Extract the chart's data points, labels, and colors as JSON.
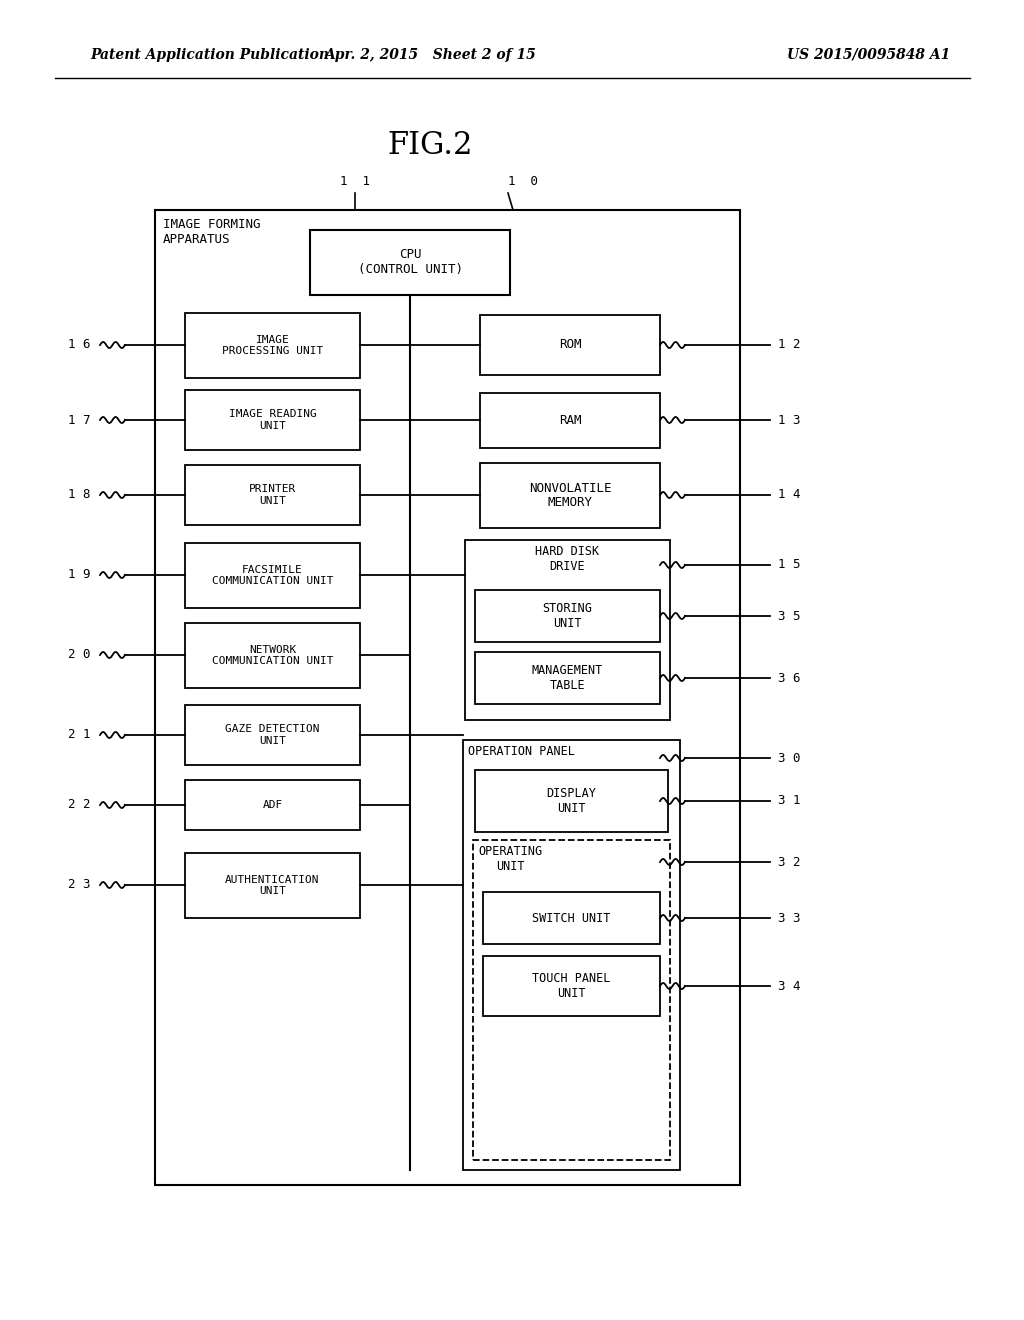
{
  "header_left": "Patent Application Publication",
  "header_mid": "Apr. 2, 2015   Sheet 2 of 15",
  "header_right": "US 2015/0095848 A1",
  "fig_title": "FIG.2",
  "bg_color": "#ffffff",
  "label_10": "1 0",
  "label_11": "1 1",
  "label_cpu": "CPU\n(CONTROL UNIT)",
  "label_outer": "IMAGE FORMING\nAPPARATUS",
  "left_boxes": [
    {
      "label": "IMAGE\nPROCESSING UNIT",
      "ref": "1 6"
    },
    {
      "label": "IMAGE READING\nUNIT",
      "ref": "1 7"
    },
    {
      "label": "PRINTER\nUNIT",
      "ref": "1 8"
    },
    {
      "label": "FACSIMILE\nCOMMUNICATION UNIT",
      "ref": "1 9"
    },
    {
      "label": "NETWORK\nCOMMUNICATION UNIT",
      "ref": "2 0"
    },
    {
      "label": "GAZE DETECTION\nUNIT",
      "ref": "2 1"
    },
    {
      "label": "ADF",
      "ref": "2 2"
    },
    {
      "label": "AUTHENTICATION\nUNIT",
      "ref": "2 3"
    }
  ],
  "right_boxes_top": [
    {
      "label": "ROM",
      "ref": "1 2"
    },
    {
      "label": "RAM",
      "ref": "1 3"
    },
    {
      "label": "NONVOLATILE\nMEMORY",
      "ref": "1 4"
    }
  ],
  "hdd_label": "HARD DISK\nDRIVE",
  "hdd_ref": "1 5",
  "storing_label": "STORING\nUNIT",
  "storing_ref": "3 5",
  "mgmt_label": "MANAGEMENT\nTABLE",
  "mgmt_ref": "3 6",
  "op_panel_label": "OPERATION PANEL",
  "op_panel_ref": "3 0",
  "display_label": "DISPLAY\nUNIT",
  "display_ref": "3 1",
  "operating_label": "OPERATING\nUNIT",
  "operating_ref": "3 2",
  "switch_label": "SWITCH UNIT",
  "switch_ref": "3 3",
  "touch_label": "TOUCH PANEL\nUNIT",
  "touch_ref": "3 4"
}
